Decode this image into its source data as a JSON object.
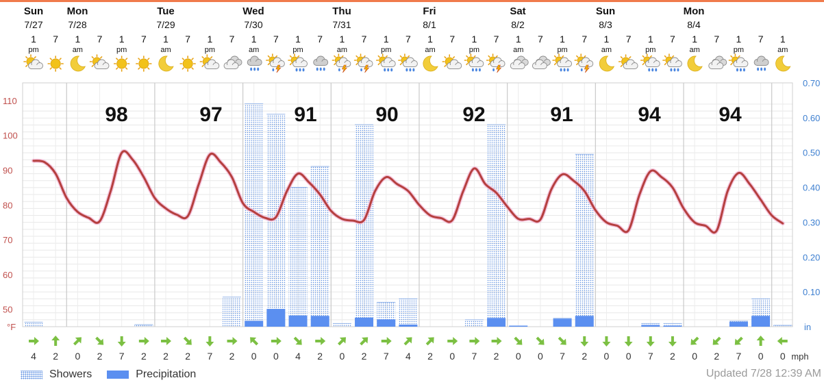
{
  "colors": {
    "temp_line": "#b5403f",
    "temp_glow": "#f3b8d6",
    "precip": "#5b8ff0",
    "showers_dot": "#5a8ee0",
    "wind": "#7cc043",
    "left_axis": "#c0504d",
    "right_axis": "#3d7fd0",
    "top_bar": "#f07a4c"
  },
  "days": [
    {
      "day": "Sun",
      "date": "7/27"
    },
    {
      "day": "Mon",
      "date": "7/28"
    },
    {
      "day": "Tue",
      "date": "7/29"
    },
    {
      "day": "Wed",
      "date": "7/30"
    },
    {
      "day": "Thu",
      "date": "7/31"
    },
    {
      "day": "Fri",
      "date": "8/1"
    },
    {
      "day": "Sat",
      "date": "8/2"
    },
    {
      "day": "Sun",
      "date": "8/3"
    },
    {
      "day": "Mon",
      "date": "8/4"
    }
  ],
  "hours": [
    {
      "h": "1",
      "ap": "pm"
    },
    {
      "h": "7",
      "ap": ""
    },
    {
      "h": "1",
      "ap": "am"
    },
    {
      "h": "7",
      "ap": ""
    },
    {
      "h": "1",
      "ap": "pm"
    },
    {
      "h": "7",
      "ap": ""
    },
    {
      "h": "1",
      "ap": "am"
    },
    {
      "h": "7",
      "ap": ""
    },
    {
      "h": "1",
      "ap": "pm"
    },
    {
      "h": "7",
      "ap": ""
    },
    {
      "h": "1",
      "ap": "am"
    },
    {
      "h": "7",
      "ap": ""
    },
    {
      "h": "1",
      "ap": "pm"
    },
    {
      "h": "7",
      "ap": ""
    },
    {
      "h": "1",
      "ap": "am"
    },
    {
      "h": "7",
      "ap": ""
    },
    {
      "h": "1",
      "ap": "pm"
    },
    {
      "h": "7",
      "ap": ""
    },
    {
      "h": "1",
      "ap": "am"
    },
    {
      "h": "7",
      "ap": ""
    },
    {
      "h": "1",
      "ap": "pm"
    },
    {
      "h": "7",
      "ap": ""
    },
    {
      "h": "1",
      "ap": "am"
    },
    {
      "h": "7",
      "ap": ""
    },
    {
      "h": "1",
      "ap": "pm"
    },
    {
      "h": "7",
      "ap": ""
    },
    {
      "h": "1",
      "ap": "am"
    },
    {
      "h": "7",
      "ap": ""
    },
    {
      "h": "1",
      "ap": "pm"
    },
    {
      "h": "7",
      "ap": ""
    },
    {
      "h": "1",
      "ap": "am"
    },
    {
      "h": "7",
      "ap": ""
    },
    {
      "h": "1",
      "ap": "pm"
    },
    {
      "h": "7",
      "ap": ""
    },
    {
      "h": "1",
      "ap": "am"
    }
  ],
  "icons": [
    "partly-sunny-icon",
    "sun-icon",
    "moon-icon",
    "partly-sunny-icon",
    "sun-icon",
    "sun-icon",
    "moon-icon",
    "sun-icon",
    "partly-sunny-icon",
    "cloudy-icon",
    "rain-cloud-icon",
    "thunderstorm-icon",
    "partly-sunny-rain-icon",
    "rain-cloud-icon",
    "thunderstorm-icon",
    "thunderstorm-icon",
    "partly-sunny-rain-icon",
    "partly-sunny-rain-icon",
    "moon-icon",
    "partly-sunny-icon",
    "partly-sunny-rain-icon",
    "thunderstorm-icon",
    "cloudy-icon",
    "cloudy-icon",
    "partly-sunny-rain-icon",
    "thunderstorm-icon",
    "moon-icon",
    "partly-sunny-icon",
    "partly-sunny-rain-icon",
    "partly-sunny-rain-icon",
    "moon-icon",
    "cloudy-icon",
    "partly-sunny-rain-icon",
    "rain-cloud-icon",
    "moon-icon"
  ],
  "axes": {
    "left_ticks": [
      "110",
      "100",
      "90",
      "80",
      "70",
      "60",
      "50"
    ],
    "left_unit": "°F",
    "right_ticks": [
      "0.70",
      "0.60",
      "0.50",
      "0.40",
      "0.30",
      "0.20",
      "0.10"
    ],
    "right_unit": "in",
    "wind_unit": "mph"
  },
  "chart_data": {
    "type": "line+bar",
    "x": [
      "7/27 1pm",
      "7/27 7pm",
      "7/28 1am",
      "7/28 7am",
      "7/28 1pm",
      "7/28 7pm",
      "7/29 1am",
      "7/29 7am",
      "7/29 1pm",
      "7/29 7pm",
      "7/30 1am",
      "7/30 7am",
      "7/30 1pm",
      "7/30 7pm",
      "7/31 1am",
      "7/31 7am",
      "7/31 1pm",
      "7/31 7pm",
      "8/1 1am",
      "8/1 7am",
      "8/1 1pm",
      "8/1 7pm",
      "8/2 1am",
      "8/2 7am",
      "8/2 1pm",
      "8/2 7pm",
      "8/3 1am",
      "8/3 7am",
      "8/3 1pm",
      "8/3 7pm",
      "8/4 1am",
      "8/4 7am",
      "8/4 1pm",
      "8/4 7pm",
      "8/5 1am"
    ],
    "ylim_left": [
      45,
      110
    ],
    "ylim_right": [
      0,
      0.7
    ],
    "daily_highs": [
      98,
      97,
      91,
      90,
      92,
      91,
      94,
      94
    ],
    "temperature_path": [
      [
        0,
        92.7
      ],
      [
        0.5,
        92.3
      ],
      [
        1,
        89
      ],
      [
        1.5,
        82
      ],
      [
        2,
        78
      ],
      [
        2.5,
        76.3
      ],
      [
        3,
        75.3
      ],
      [
        3.5,
        84
      ],
      [
        4,
        95
      ],
      [
        4.5,
        93
      ],
      [
        5,
        88
      ],
      [
        5.5,
        82
      ],
      [
        6,
        79
      ],
      [
        6.5,
        77.2
      ],
      [
        7,
        76.8
      ],
      [
        7.5,
        86
      ],
      [
        8,
        94.5
      ],
      [
        8.5,
        92.2
      ],
      [
        9,
        88
      ],
      [
        9.5,
        80.5
      ],
      [
        10,
        78
      ],
      [
        10.5,
        76.3
      ],
      [
        11,
        76.5
      ],
      [
        11.5,
        84
      ],
      [
        12,
        89
      ],
      [
        12.5,
        86.5
      ],
      [
        13,
        83
      ],
      [
        13.5,
        78.3
      ],
      [
        14,
        76
      ],
      [
        14.5,
        75.5
      ],
      [
        15,
        75.7
      ],
      [
        15.5,
        84
      ],
      [
        16,
        88
      ],
      [
        16.5,
        86
      ],
      [
        17,
        84
      ],
      [
        17.5,
        80
      ],
      [
        18,
        77
      ],
      [
        18.5,
        76.2
      ],
      [
        19,
        75.6
      ],
      [
        19.5,
        84
      ],
      [
        20,
        90.5
      ],
      [
        20.5,
        86
      ],
      [
        21,
        83.5
      ],
      [
        21.5,
        79.5
      ],
      [
        22,
        76
      ],
      [
        22.5,
        76
      ],
      [
        23,
        75.8
      ],
      [
        23.5,
        84.5
      ],
      [
        24,
        88.8
      ],
      [
        24.5,
        87
      ],
      [
        25,
        84
      ],
      [
        25.5,
        78.5
      ],
      [
        26,
        75
      ],
      [
        26.5,
        74
      ],
      [
        27,
        72.7
      ],
      [
        27.5,
        83
      ],
      [
        28,
        89.7
      ],
      [
        28.5,
        88
      ],
      [
        29,
        85
      ],
      [
        29.5,
        79
      ],
      [
        30,
        75
      ],
      [
        30.5,
        74
      ],
      [
        31,
        72.6
      ],
      [
        31.5,
        84
      ],
      [
        32,
        89.2
      ],
      [
        32.5,
        86
      ],
      [
        33,
        81.5
      ],
      [
        33.5,
        77
      ],
      [
        34,
        74.7
      ]
    ],
    "series": [
      {
        "name": "Showers",
        "unit": "in",
        "values": [
          0.013,
          0,
          0,
          0,
          0,
          0.006,
          0,
          0,
          0,
          0.085,
          0.64,
          0.61,
          0.4,
          0.46,
          0.009,
          0.58,
          0.07,
          0.08,
          0,
          0,
          0.02,
          0.58,
          0,
          0,
          0.024,
          0.495,
          0,
          0,
          0.009,
          0.009,
          0,
          0,
          0.016,
          0.08,
          0.004
        ]
      },
      {
        "name": "Precipitation",
        "unit": "in",
        "values": [
          0,
          0,
          0,
          0,
          0,
          0,
          0,
          0,
          0,
          0,
          0.017,
          0.051,
          0.032,
          0.031,
          0,
          0.026,
          0.021,
          0.006,
          0,
          0,
          0,
          0.025,
          0.003,
          0,
          0.023,
          0.031,
          0,
          0,
          0.005,
          0.003,
          0,
          0,
          0.014,
          0.031,
          0
        ]
      }
    ],
    "wind_speed_mph": [
      4,
      2,
      0,
      2,
      7,
      2,
      2,
      2,
      7,
      2,
      0,
      0,
      4,
      2,
      0,
      2,
      7,
      4,
      2,
      0,
      7,
      2,
      0,
      0,
      7,
      2,
      0,
      0,
      7,
      2,
      0,
      2,
      7,
      0,
      0
    ],
    "wind_dir": [
      "W",
      "S",
      "SW",
      "NW",
      "N",
      "W",
      "W",
      "NW",
      "N",
      "W",
      "SE",
      "W",
      "NW",
      "W",
      "SW",
      "SW",
      "W",
      "SW",
      "SW",
      "W",
      "W",
      "W",
      "NW",
      "NW",
      "NW",
      "N",
      "N",
      "N",
      "N",
      "N",
      "NE",
      "NE",
      "NE",
      "S",
      "E"
    ],
    "legend": "bottom-left"
  },
  "legend": {
    "showers": "Showers",
    "precip": "Precipitation"
  },
  "updated": "Updated 7/28 12:39 AM"
}
